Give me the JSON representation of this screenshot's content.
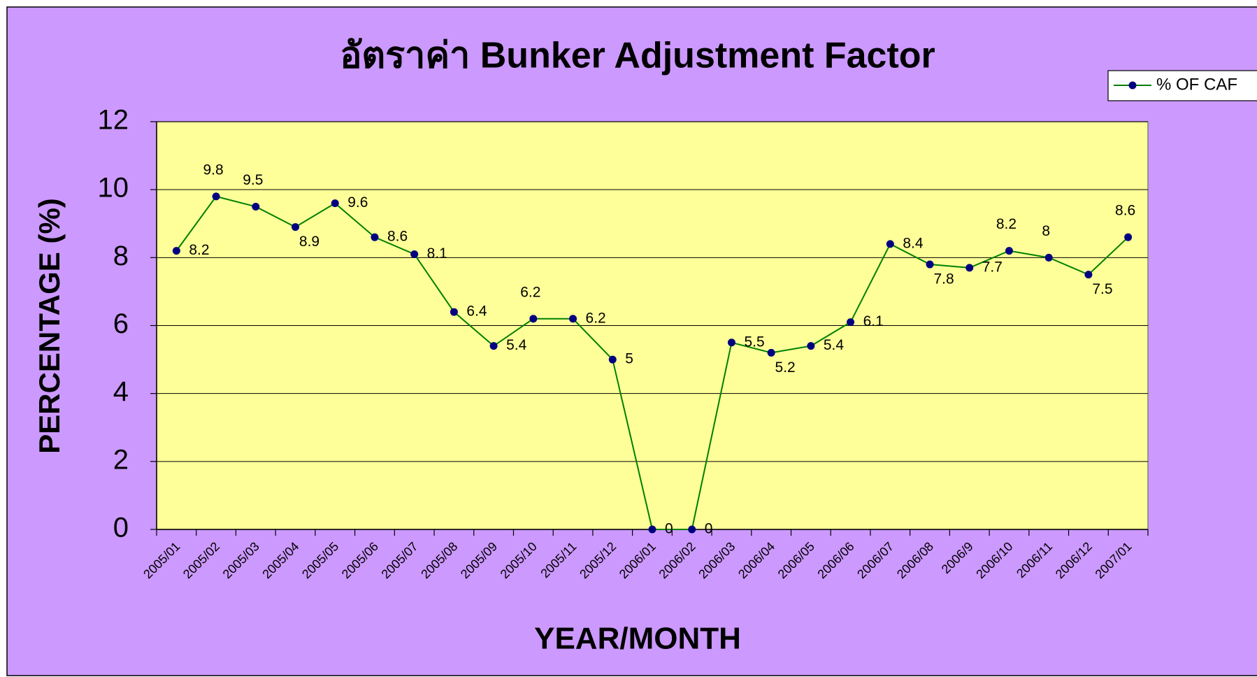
{
  "chart_data": {
    "type": "line",
    "title": "อัตราค่า Bunker Adjustment Factor",
    "x_label": "YEAR/MONTH",
    "y_label": "PERCENTAGE (%)",
    "categories": [
      "2005/01",
      "2005/02",
      "2005/03",
      "2005/04",
      "2005/05",
      "2005/06",
      "2005/07",
      "2005/08",
      "2005/09",
      "2005/10",
      "2005/11",
      "2005/12",
      "2006/01",
      "2006/02",
      "2006/03",
      "2006/04",
      "2006/05",
      "2006/06",
      "2006/07",
      "2006/08",
      "2006/9",
      "2006/10",
      "2006/11",
      "2006/12",
      "2007/01"
    ],
    "series": [
      {
        "name": "% OF CAF",
        "color": "#008000",
        "marker_color": "#000080",
        "values": [
          8.2,
          9.8,
          9.5,
          8.9,
          9.6,
          8.6,
          8.1,
          6.4,
          5.4,
          6.2,
          6.2,
          5,
          0,
          0,
          5.5,
          5.2,
          5.4,
          6.1,
          8.4,
          7.8,
          7.7,
          8.2,
          8,
          7.5,
          8.6
        ]
      }
    ],
    "ylim": [
      0,
      12
    ],
    "yticks": [
      0,
      2,
      4,
      6,
      8,
      10,
      12
    ],
    "grid": true,
    "background": "#cc99ff",
    "plot_background": "#ffff99",
    "legend": "upper right"
  }
}
